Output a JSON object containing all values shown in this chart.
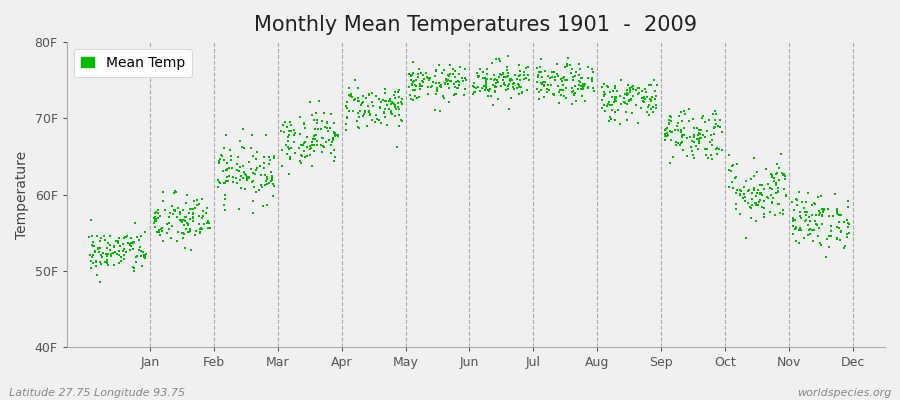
{
  "title": "Monthly Mean Temperatures 1901  -  2009",
  "ylabel": "Temperature",
  "ylim": [
    40,
    80
  ],
  "ytick_labels": [
    "40F",
    "50F",
    "60F",
    "70F",
    "80F"
  ],
  "ytick_values": [
    40,
    50,
    60,
    70,
    80
  ],
  "months": [
    "Jan",
    "Feb",
    "Mar",
    "Apr",
    "May",
    "Jun",
    "Jul",
    "Aug",
    "Sep",
    "Oct",
    "Nov",
    "Dec"
  ],
  "dot_color": "#00BB00",
  "background_color": "#F0F0F0",
  "figure_bg": "#F0F0F0",
  "legend_label": "Mean Temp",
  "attribution_left": "Latitude 27.75 Longitude 93.75",
  "attribution_right": "worldspecies.org",
  "month_mean_temps": [
    52.5,
    56.5,
    63.0,
    67.5,
    71.5,
    74.5,
    75.0,
    74.5,
    72.5,
    68.0,
    60.5,
    56.5
  ],
  "month_std_temps": [
    1.5,
    1.8,
    2.0,
    1.8,
    1.5,
    1.2,
    1.3,
    1.3,
    1.4,
    1.8,
    2.2,
    1.8
  ],
  "num_years": 109,
  "title_fontsize": 15,
  "label_fontsize": 10,
  "tick_fontsize": 9,
  "attribution_fontsize": 8
}
